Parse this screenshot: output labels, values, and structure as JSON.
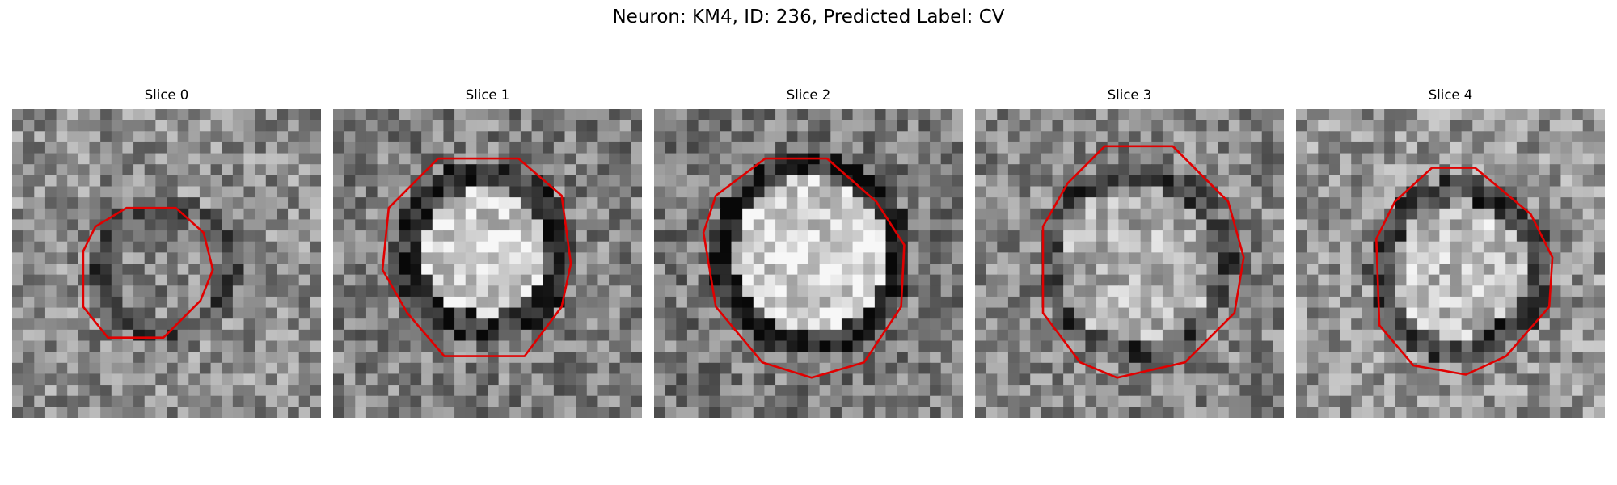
{
  "figure": {
    "title": "Neuron: KM4, ID: 236, Predicted Label: CV"
  },
  "panels": [
    {
      "title": "Slice 0"
    },
    {
      "title": "Slice 1"
    },
    {
      "title": "Slice 2"
    },
    {
      "title": "Slice 3"
    },
    {
      "title": "Slice 4"
    }
  ],
  "colors": {
    "contour": "#e00000"
  }
}
